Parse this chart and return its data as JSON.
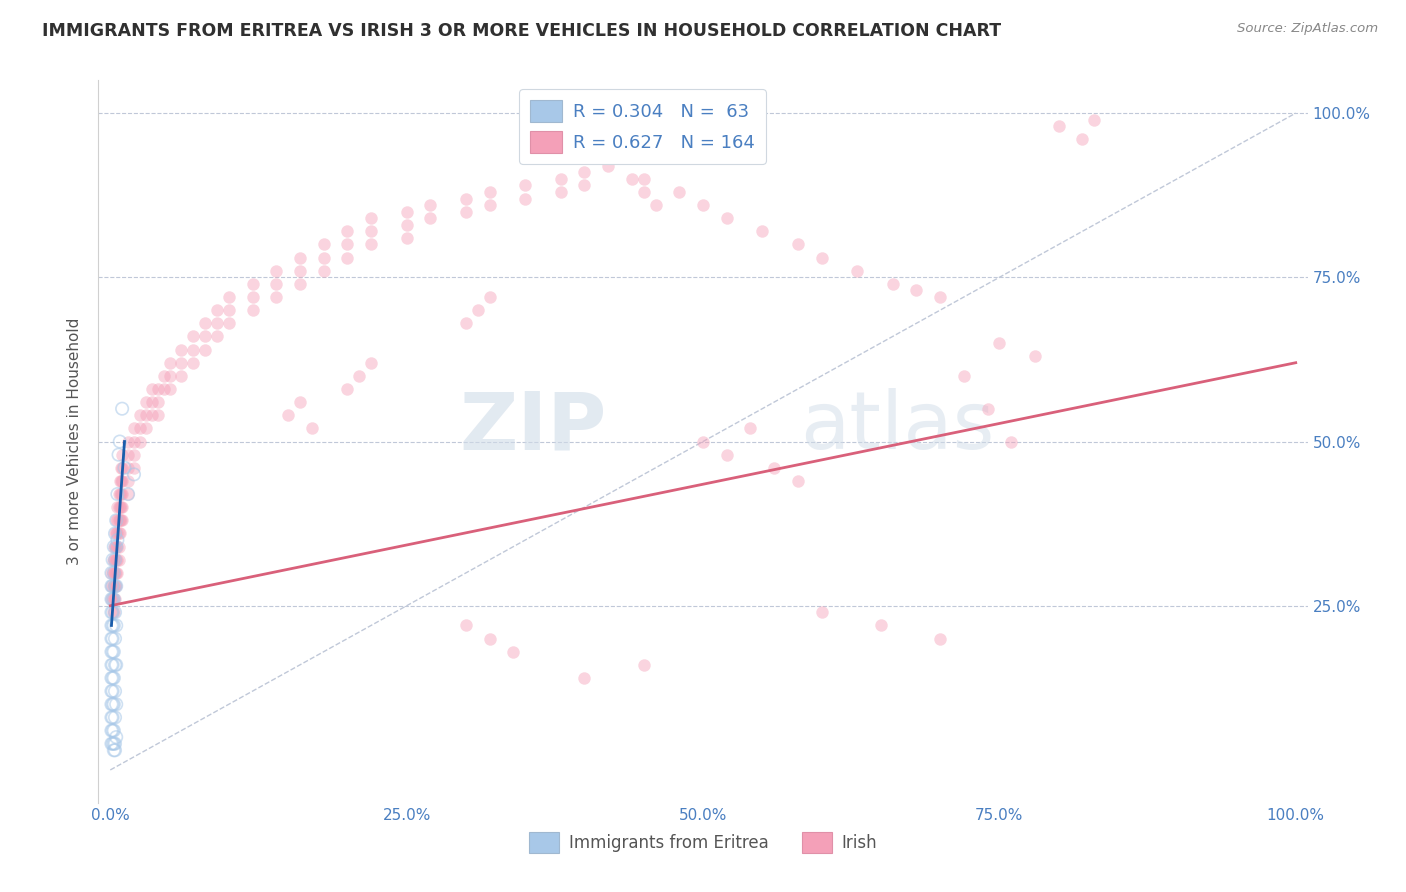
{
  "title": "IMMIGRANTS FROM ERITREA VS IRISH 3 OR MORE VEHICLES IN HOUSEHOLD CORRELATION CHART",
  "source": "Source: ZipAtlas.com",
  "ylabel": "3 or more Vehicles in Household",
  "xlim": [
    -0.01,
    1.01
  ],
  "ylim": [
    -0.05,
    1.05
  ],
  "xticks": [
    0.0,
    0.25,
    0.5,
    0.75,
    1.0
  ],
  "xticklabels": [
    "0.0%",
    "25.0%",
    "50.0%",
    "75.0%",
    "100.0%"
  ],
  "yticks": [
    0.0,
    0.25,
    0.5,
    0.75,
    1.0
  ],
  "yticklabels_right": [
    "",
    "25.0%",
    "50.0%",
    "75.0%",
    "100.0%"
  ],
  "legend_R1": "0.304",
  "legend_N1": "63",
  "legend_R2": "0.627",
  "legend_N2": "164",
  "color_blue": "#a8c8e8",
  "color_pink": "#f4a0b8",
  "line_color_blue": "#1a5dab",
  "line_color_pink": "#d9607a",
  "tick_color": "#4a7fc1",
  "watermark_zip": "ZIP",
  "watermark_atlas": "atlas",
  "grid_color": "#c0c8d8",
  "bg_color": "#ffffff",
  "scatter_alpha_blue": 0.55,
  "scatter_alpha_pink": 0.45,
  "scatter_size_blue": 80,
  "scatter_size_pink": 80,
  "scatter_blue": [
    [
      0.001,
      0.3
    ],
    [
      0.001,
      0.28
    ],
    [
      0.001,
      0.26
    ],
    [
      0.001,
      0.24
    ],
    [
      0.001,
      0.22
    ],
    [
      0.001,
      0.2
    ],
    [
      0.001,
      0.18
    ],
    [
      0.001,
      0.16
    ],
    [
      0.001,
      0.14
    ],
    [
      0.001,
      0.12
    ],
    [
      0.001,
      0.1
    ],
    [
      0.001,
      0.08
    ],
    [
      0.001,
      0.06
    ],
    [
      0.001,
      0.04
    ],
    [
      0.002,
      0.32
    ],
    [
      0.002,
      0.28
    ],
    [
      0.002,
      0.26
    ],
    [
      0.002,
      0.24
    ],
    [
      0.002,
      0.22
    ],
    [
      0.002,
      0.2
    ],
    [
      0.002,
      0.18
    ],
    [
      0.002,
      0.16
    ],
    [
      0.002,
      0.14
    ],
    [
      0.002,
      0.12
    ],
    [
      0.002,
      0.1
    ],
    [
      0.002,
      0.08
    ],
    [
      0.002,
      0.06
    ],
    [
      0.002,
      0.04
    ],
    [
      0.003,
      0.34
    ],
    [
      0.003,
      0.3
    ],
    [
      0.003,
      0.26
    ],
    [
      0.003,
      0.22
    ],
    [
      0.003,
      0.18
    ],
    [
      0.003,
      0.14
    ],
    [
      0.003,
      0.1
    ],
    [
      0.003,
      0.06
    ],
    [
      0.003,
      0.04
    ],
    [
      0.003,
      0.03
    ],
    [
      0.004,
      0.36
    ],
    [
      0.004,
      0.32
    ],
    [
      0.004,
      0.28
    ],
    [
      0.004,
      0.24
    ],
    [
      0.004,
      0.2
    ],
    [
      0.004,
      0.16
    ],
    [
      0.004,
      0.12
    ],
    [
      0.004,
      0.08
    ],
    [
      0.004,
      0.04
    ],
    [
      0.004,
      0.03
    ],
    [
      0.005,
      0.38
    ],
    [
      0.005,
      0.34
    ],
    [
      0.005,
      0.28
    ],
    [
      0.005,
      0.22
    ],
    [
      0.005,
      0.16
    ],
    [
      0.005,
      0.1
    ],
    [
      0.005,
      0.05
    ],
    [
      0.006,
      0.42
    ],
    [
      0.006,
      0.35
    ],
    [
      0.007,
      0.48
    ],
    [
      0.008,
      0.5
    ],
    [
      0.01,
      0.55
    ],
    [
      0.012,
      0.46
    ],
    [
      0.015,
      0.42
    ],
    [
      0.02,
      0.45
    ]
  ],
  "scatter_pink": [
    [
      0.001,
      0.3
    ],
    [
      0.001,
      0.28
    ],
    [
      0.001,
      0.26
    ],
    [
      0.002,
      0.32
    ],
    [
      0.002,
      0.3
    ],
    [
      0.002,
      0.28
    ],
    [
      0.002,
      0.26
    ],
    [
      0.002,
      0.24
    ],
    [
      0.003,
      0.34
    ],
    [
      0.003,
      0.32
    ],
    [
      0.003,
      0.3
    ],
    [
      0.003,
      0.28
    ],
    [
      0.003,
      0.26
    ],
    [
      0.003,
      0.24
    ],
    [
      0.004,
      0.36
    ],
    [
      0.004,
      0.34
    ],
    [
      0.004,
      0.32
    ],
    [
      0.004,
      0.3
    ],
    [
      0.004,
      0.28
    ],
    [
      0.004,
      0.26
    ],
    [
      0.005,
      0.38
    ],
    [
      0.005,
      0.36
    ],
    [
      0.005,
      0.34
    ],
    [
      0.005,
      0.32
    ],
    [
      0.005,
      0.3
    ],
    [
      0.005,
      0.28
    ],
    [
      0.006,
      0.4
    ],
    [
      0.006,
      0.38
    ],
    [
      0.006,
      0.36
    ],
    [
      0.006,
      0.34
    ],
    [
      0.006,
      0.32
    ],
    [
      0.006,
      0.3
    ],
    [
      0.007,
      0.42
    ],
    [
      0.007,
      0.4
    ],
    [
      0.007,
      0.38
    ],
    [
      0.007,
      0.36
    ],
    [
      0.007,
      0.34
    ],
    [
      0.007,
      0.32
    ],
    [
      0.008,
      0.44
    ],
    [
      0.008,
      0.42
    ],
    [
      0.008,
      0.4
    ],
    [
      0.008,
      0.38
    ],
    [
      0.008,
      0.36
    ],
    [
      0.009,
      0.46
    ],
    [
      0.009,
      0.44
    ],
    [
      0.009,
      0.42
    ],
    [
      0.009,
      0.4
    ],
    [
      0.009,
      0.38
    ],
    [
      0.01,
      0.48
    ],
    [
      0.01,
      0.46
    ],
    [
      0.01,
      0.44
    ],
    [
      0.01,
      0.42
    ],
    [
      0.01,
      0.4
    ],
    [
      0.01,
      0.38
    ],
    [
      0.015,
      0.5
    ],
    [
      0.015,
      0.48
    ],
    [
      0.015,
      0.46
    ],
    [
      0.015,
      0.44
    ],
    [
      0.015,
      0.42
    ],
    [
      0.02,
      0.52
    ],
    [
      0.02,
      0.5
    ],
    [
      0.02,
      0.48
    ],
    [
      0.02,
      0.46
    ],
    [
      0.025,
      0.54
    ],
    [
      0.025,
      0.52
    ],
    [
      0.025,
      0.5
    ],
    [
      0.03,
      0.56
    ],
    [
      0.03,
      0.54
    ],
    [
      0.03,
      0.52
    ],
    [
      0.035,
      0.58
    ],
    [
      0.035,
      0.56
    ],
    [
      0.035,
      0.54
    ],
    [
      0.04,
      0.58
    ],
    [
      0.04,
      0.56
    ],
    [
      0.04,
      0.54
    ],
    [
      0.045,
      0.6
    ],
    [
      0.045,
      0.58
    ],
    [
      0.05,
      0.62
    ],
    [
      0.05,
      0.6
    ],
    [
      0.05,
      0.58
    ],
    [
      0.06,
      0.64
    ],
    [
      0.06,
      0.62
    ],
    [
      0.06,
      0.6
    ],
    [
      0.07,
      0.66
    ],
    [
      0.07,
      0.64
    ],
    [
      0.07,
      0.62
    ],
    [
      0.08,
      0.68
    ],
    [
      0.08,
      0.66
    ],
    [
      0.08,
      0.64
    ],
    [
      0.09,
      0.7
    ],
    [
      0.09,
      0.68
    ],
    [
      0.09,
      0.66
    ],
    [
      0.1,
      0.72
    ],
    [
      0.1,
      0.7
    ],
    [
      0.1,
      0.68
    ],
    [
      0.12,
      0.74
    ],
    [
      0.12,
      0.72
    ],
    [
      0.12,
      0.7
    ],
    [
      0.14,
      0.76
    ],
    [
      0.14,
      0.74
    ],
    [
      0.14,
      0.72
    ],
    [
      0.16,
      0.78
    ],
    [
      0.16,
      0.76
    ],
    [
      0.16,
      0.74
    ],
    [
      0.18,
      0.8
    ],
    [
      0.18,
      0.78
    ],
    [
      0.18,
      0.76
    ],
    [
      0.2,
      0.82
    ],
    [
      0.2,
      0.8
    ],
    [
      0.2,
      0.78
    ],
    [
      0.22,
      0.84
    ],
    [
      0.22,
      0.82
    ],
    [
      0.22,
      0.8
    ],
    [
      0.25,
      0.85
    ],
    [
      0.25,
      0.83
    ],
    [
      0.25,
      0.81
    ],
    [
      0.27,
      0.86
    ],
    [
      0.27,
      0.84
    ],
    [
      0.3,
      0.87
    ],
    [
      0.3,
      0.85
    ],
    [
      0.32,
      0.88
    ],
    [
      0.32,
      0.86
    ],
    [
      0.35,
      0.89
    ],
    [
      0.35,
      0.87
    ],
    [
      0.38,
      0.9
    ],
    [
      0.38,
      0.88
    ],
    [
      0.4,
      0.91
    ],
    [
      0.4,
      0.89
    ],
    [
      0.42,
      0.92
    ],
    [
      0.45,
      0.9
    ],
    [
      0.48,
      0.88
    ],
    [
      0.5,
      0.86
    ],
    [
      0.52,
      0.84
    ],
    [
      0.55,
      0.82
    ],
    [
      0.58,
      0.8
    ],
    [
      0.6,
      0.78
    ],
    [
      0.63,
      0.76
    ],
    [
      0.66,
      0.74
    ],
    [
      0.68,
      0.73
    ],
    [
      0.7,
      0.72
    ],
    [
      0.72,
      0.6
    ],
    [
      0.74,
      0.55
    ],
    [
      0.76,
      0.5
    ],
    [
      0.5,
      0.5
    ],
    [
      0.52,
      0.48
    ],
    [
      0.54,
      0.52
    ],
    [
      0.56,
      0.46
    ],
    [
      0.58,
      0.44
    ],
    [
      0.3,
      0.22
    ],
    [
      0.32,
      0.2
    ],
    [
      0.34,
      0.18
    ],
    [
      0.4,
      0.14
    ],
    [
      0.45,
      0.16
    ],
    [
      0.6,
      0.24
    ],
    [
      0.65,
      0.22
    ],
    [
      0.7,
      0.2
    ],
    [
      0.75,
      0.65
    ],
    [
      0.78,
      0.63
    ],
    [
      0.8,
      0.98
    ],
    [
      0.82,
      0.96
    ],
    [
      0.83,
      0.99
    ],
    [
      0.45,
      0.88
    ],
    [
      0.46,
      0.86
    ],
    [
      0.44,
      0.9
    ],
    [
      0.3,
      0.68
    ],
    [
      0.31,
      0.7
    ],
    [
      0.32,
      0.72
    ],
    [
      0.2,
      0.58
    ],
    [
      0.21,
      0.6
    ],
    [
      0.22,
      0.62
    ],
    [
      0.15,
      0.54
    ],
    [
      0.16,
      0.56
    ],
    [
      0.17,
      0.52
    ]
  ],
  "pink_line": [
    0.0,
    0.25,
    1.0,
    0.62
  ],
  "blue_line": [
    0.001,
    0.22,
    0.012,
    0.5
  ]
}
